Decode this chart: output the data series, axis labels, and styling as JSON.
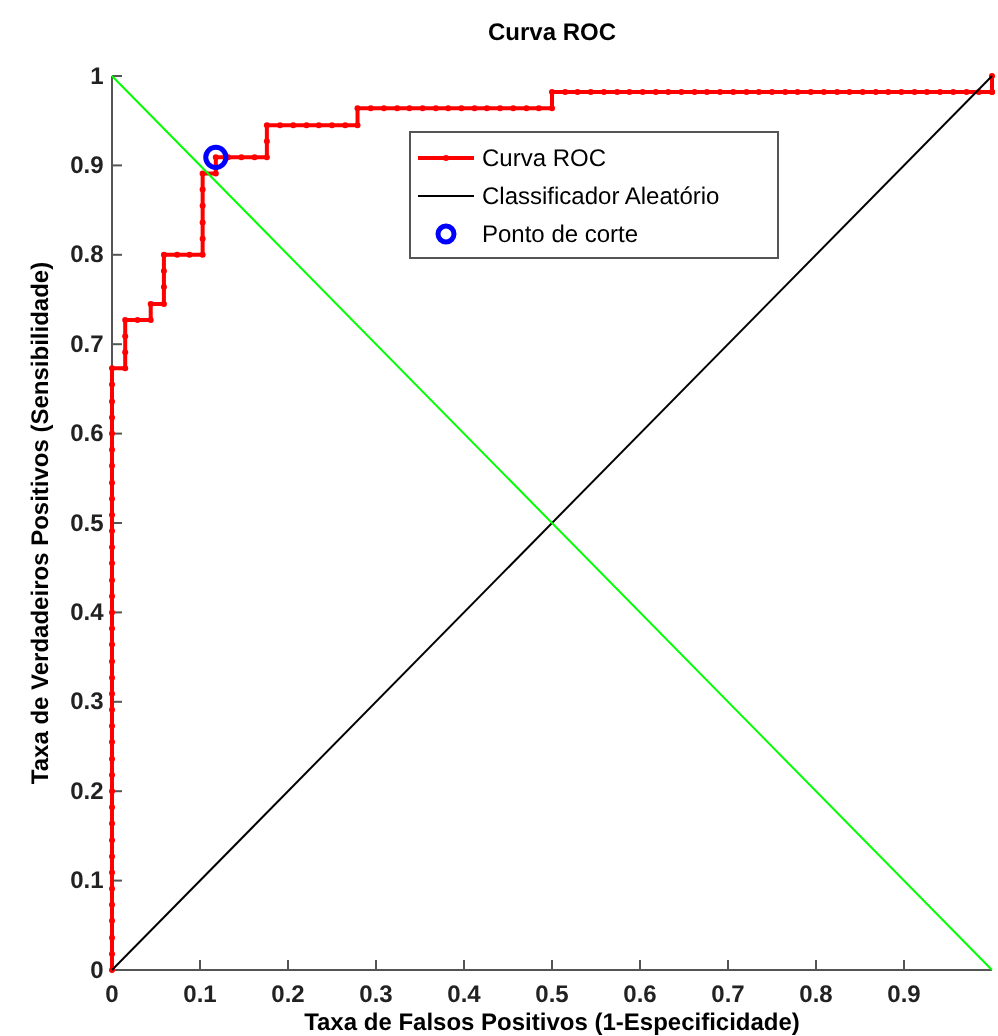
{
  "chart_data": {
    "type": "line",
    "title": "Curva ROC",
    "xlabel": "Taxa de Falsos Positivos (1-Especificidade)",
    "ylabel": "Taxa de Verdadeiros Positivos (Sensibilidade)",
    "xlim": [
      0,
      1
    ],
    "ylim": [
      0,
      1
    ],
    "xticks": [
      0,
      0.1,
      0.2,
      0.3,
      0.4,
      0.5,
      0.6,
      0.7,
      0.8,
      0.9
    ],
    "yticks": [
      0,
      0.1,
      0.2,
      0.3,
      0.4,
      0.5,
      0.6,
      0.7,
      0.8,
      0.9,
      1
    ],
    "grid": false,
    "legend": "top",
    "series": [
      {
        "name": "Curva ROC",
        "color": "#ff0000",
        "marker": "circle",
        "x": [
          0,
          0,
          0,
          0,
          0,
          0,
          0,
          0,
          0,
          0,
          0,
          0,
          0,
          0,
          0,
          0,
          0,
          0,
          0,
          0,
          0,
          0,
          0,
          0,
          0,
          0,
          0,
          0,
          0,
          0,
          0,
          0,
          0,
          0,
          0,
          0,
          0,
          0,
          0.015,
          0.015,
          0.015,
          0.015,
          0.029,
          0.044,
          0.044,
          0.059,
          0.059,
          0.059,
          0.059,
          0.074,
          0.088,
          0.103,
          0.103,
          0.103,
          0.103,
          0.103,
          0.103,
          0.118,
          0.118,
          0.132,
          0.147,
          0.162,
          0.176,
          0.176,
          0.176,
          0.191,
          0.206,
          0.221,
          0.235,
          0.25,
          0.265,
          0.279,
          0.279,
          0.294,
          0.309,
          0.324,
          0.338,
          0.353,
          0.368,
          0.382,
          0.397,
          0.412,
          0.426,
          0.441,
          0.456,
          0.471,
          0.485,
          0.5,
          0.5,
          0.515,
          0.529,
          0.544,
          0.559,
          0.574,
          0.588,
          0.603,
          0.618,
          0.632,
          0.647,
          0.662,
          0.676,
          0.691,
          0.706,
          0.721,
          0.735,
          0.75,
          0.765,
          0.779,
          0.794,
          0.809,
          0.824,
          0.838,
          0.853,
          0.868,
          0.882,
          0.897,
          0.912,
          0.926,
          0.941,
          0.956,
          0.971,
          0.985,
          1,
          1,
          1
        ],
        "values": [
          0,
          0.018,
          0.036,
          0.055,
          0.073,
          0.091,
          0.109,
          0.127,
          0.145,
          0.164,
          0.182,
          0.2,
          0.218,
          0.236,
          0.255,
          0.273,
          0.291,
          0.309,
          0.327,
          0.345,
          0.364,
          0.382,
          0.4,
          0.418,
          0.436,
          0.455,
          0.473,
          0.491,
          0.509,
          0.527,
          0.545,
          0.564,
          0.582,
          0.6,
          0.618,
          0.636,
          0.655,
          0.673,
          0.673,
          0.691,
          0.709,
          0.727,
          0.727,
          0.727,
          0.745,
          0.745,
          0.764,
          0.782,
          0.8,
          0.8,
          0.8,
          0.8,
          0.818,
          0.836,
          0.855,
          0.873,
          0.891,
          0.891,
          0.909,
          0.909,
          0.909,
          0.909,
          0.909,
          0.927,
          0.945,
          0.945,
          0.945,
          0.945,
          0.945,
          0.945,
          0.945,
          0.945,
          0.964,
          0.964,
          0.964,
          0.964,
          0.964,
          0.964,
          0.964,
          0.964,
          0.964,
          0.964,
          0.964,
          0.964,
          0.964,
          0.964,
          0.964,
          0.964,
          0.982,
          0.982,
          0.982,
          0.982,
          0.982,
          0.982,
          0.982,
          0.982,
          0.982,
          0.982,
          0.982,
          0.982,
          0.982,
          0.982,
          0.982,
          0.982,
          0.982,
          0.982,
          0.982,
          0.982,
          0.982,
          0.982,
          0.982,
          0.982,
          0.982,
          0.982,
          0.982,
          0.982,
          0.982,
          0.982,
          0.982,
          0.982,
          0.982,
          0.982,
          0.982,
          0.982,
          1
        ]
      },
      {
        "name": "Classificador Aleatório",
        "color": "#000000",
        "marker": "none",
        "x": [
          0,
          1
        ],
        "values": [
          0,
          1
        ]
      },
      {
        "type": "scatter",
        "name": "Ponto de corte",
        "color": "#0000ff",
        "marker": "circle",
        "x": [
          0.118
        ],
        "values": [
          0.909
        ]
      },
      {
        "color": "#00ff00",
        "marker": "none",
        "x": [
          0,
          1
        ],
        "values": [
          1,
          0
        ]
      }
    ]
  }
}
